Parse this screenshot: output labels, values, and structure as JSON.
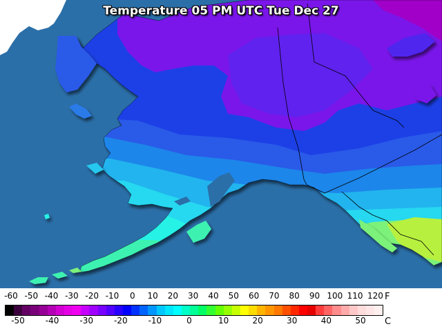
{
  "map": {
    "title": "Temperature 05 PM UTC Tue Dec 27",
    "colors": {
      "ocean": "#2b6fa8",
      "foreign_land": "#ffffff",
      "border_line": "#000000",
      "bands": [
        "#a000c8",
        "#8c10e0",
        "#5a28f0",
        "#2a3ae8",
        "#1e50e6",
        "#1f86ea",
        "#22b4ee",
        "#25d8f0",
        "#27f2e6",
        "#3cf2b0",
        "#7cf27a",
        "#b8f040"
      ]
    }
  },
  "legend": {
    "fahrenheit_ticks": [
      "-60",
      "-50",
      "-40",
      "-30",
      "-20",
      "-10",
      "0",
      "10",
      "20",
      "30",
      "40",
      "50",
      "60",
      "70",
      "80",
      "90",
      "100",
      "110",
      "120"
    ],
    "celsius_ticks": [
      "-50",
      "-40",
      "-30",
      "-20",
      "-10",
      "0",
      "10",
      "20",
      "30",
      "40",
      "50"
    ],
    "fahrenheit_unit": "F",
    "celsius_unit": "C",
    "colors": [
      "#000000",
      "#3c003c",
      "#640064",
      "#7a007a",
      "#960096",
      "#b400b4",
      "#d200d2",
      "#e600e6",
      "#f000f0",
      "#c800ff",
      "#a000ff",
      "#7800ff",
      "#5000ff",
      "#2800ff",
      "#0000ff",
      "#0032ff",
      "#0064ff",
      "#0096ff",
      "#00c8ff",
      "#00e6ff",
      "#00ffff",
      "#00ffc8",
      "#00ff96",
      "#00ff64",
      "#32ff32",
      "#64ff00",
      "#96ff00",
      "#c8ff00",
      "#ffff00",
      "#ffdc00",
      "#ffb400",
      "#ff9600",
      "#ff7800",
      "#ff5000",
      "#ff2800",
      "#ff0000",
      "#e60000",
      "#ff3c3c",
      "#ff6464",
      "#ff8c8c",
      "#ffaaaa",
      "#ffc8c8",
      "#ffdcdc",
      "#ffe6e6",
      "#fff0f0"
    ]
  }
}
